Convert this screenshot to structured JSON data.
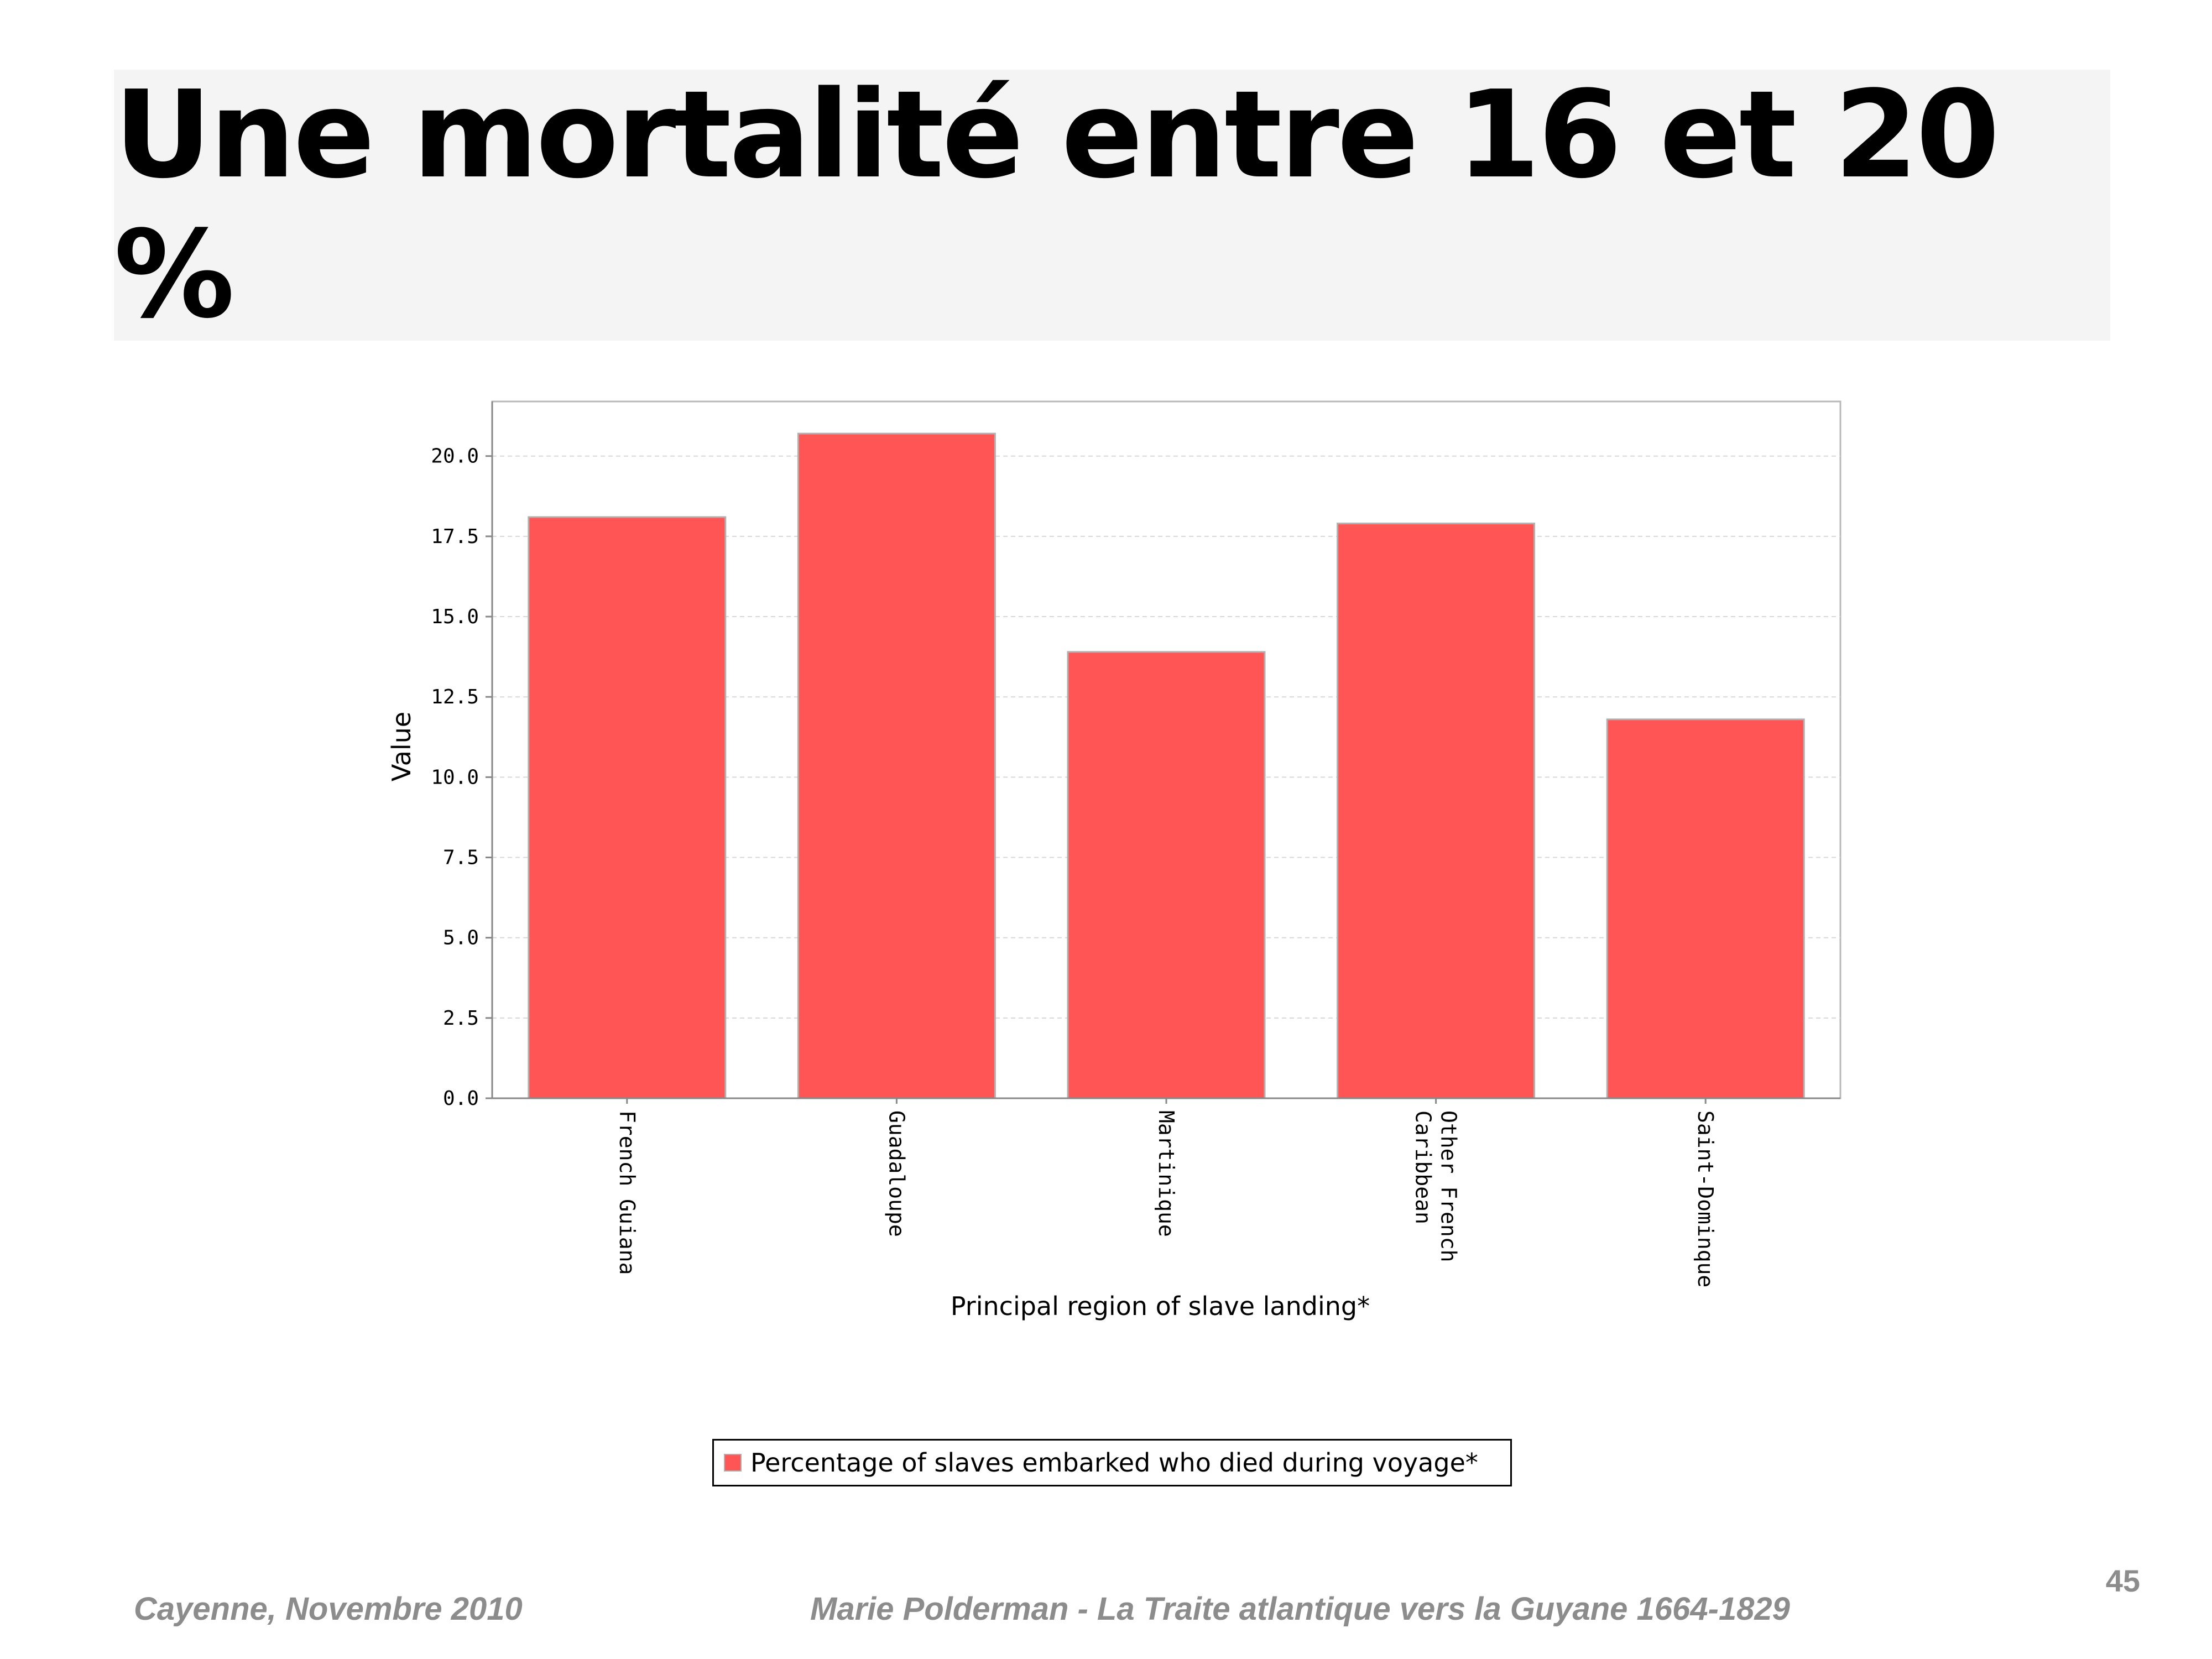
{
  "slide": {
    "title": "Une mortalité entre 16 et 20 %",
    "footer_left": "Cayenne, Novembre 2010",
    "footer_center": "Marie Polderman - La Traite atlantique vers la Guyane 1664-1829",
    "page_number": "45"
  },
  "chart_data": {
    "type": "bar",
    "categories": [
      "French Guiana",
      "Guadaloupe",
      "Martinique",
      "Other French\nCaribbean",
      "Saint-Dominque"
    ],
    "series": [
      {
        "name": "Percentage of slaves embarked who died during voyage*",
        "values": [
          18.1,
          20.7,
          13.9,
          17.9,
          11.8
        ]
      }
    ],
    "xlabel": "Principal region of slave landing*",
    "ylabel": "Value",
    "ylim": [
      0,
      21.7
    ],
    "yticks": [
      "0.0",
      "2.5",
      "5.0",
      "7.5",
      "10.0",
      "12.5",
      "15.0",
      "17.5",
      "20.0"
    ],
    "grid": true,
    "legend_position": "bottom-center",
    "colors": {
      "bar": "#ff5555",
      "bar_edge": "#b0b0b0",
      "grid": "#d8d8d8",
      "axis": "#888888"
    }
  }
}
